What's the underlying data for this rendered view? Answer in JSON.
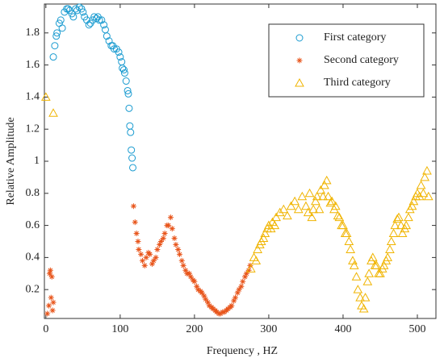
{
  "chart_data": {
    "type": "scatter",
    "x_label": "Frequency , HZ",
    "y_label": "Relative Amplitude",
    "xlim": [
      -2,
      525
    ],
    "ylim": [
      0.02,
      1.98
    ],
    "xticks": [
      0,
      100,
      200,
      300,
      400,
      500
    ],
    "yticks": [
      0.2,
      0.4,
      0.6,
      0.8,
      1,
      1.2,
      1.4,
      1.6,
      1.8
    ],
    "legend": "upper right",
    "series": [
      {
        "name": "First category",
        "color": "#1a9bd0",
        "marker": "circle",
        "x": [
          10,
          12,
          14,
          15,
          18,
          20,
          22,
          25,
          28,
          30,
          32,
          35,
          37,
          40,
          42,
          45,
          48,
          50,
          52,
          55,
          58,
          60,
          63,
          65,
          68,
          70,
          72,
          75,
          78,
          80,
          82,
          85,
          88,
          90,
          92,
          95,
          98,
          100,
          102,
          103,
          105,
          106,
          108,
          110,
          111,
          112,
          113,
          114,
          115,
          116,
          117
        ],
        "values": [
          1.65,
          1.72,
          1.78,
          1.8,
          1.86,
          1.88,
          1.83,
          1.93,
          1.95,
          1.95,
          1.94,
          1.92,
          1.9,
          1.95,
          1.94,
          1.96,
          1.95,
          1.93,
          1.9,
          1.88,
          1.85,
          1.86,
          1.88,
          1.9,
          1.89,
          1.9,
          1.88,
          1.88,
          1.85,
          1.82,
          1.78,
          1.75,
          1.72,
          1.72,
          1.7,
          1.7,
          1.68,
          1.65,
          1.62,
          1.58,
          1.57,
          1.55,
          1.5,
          1.44,
          1.42,
          1.33,
          1.22,
          1.18,
          1.07,
          1.02,
          0.96
        ]
      },
      {
        "name": "Second category",
        "color": "#e8551b",
        "marker": "asterisk",
        "x": [
          2,
          4,
          5,
          6,
          7,
          8,
          9,
          10,
          118,
          120,
          122,
          124,
          125,
          128,
          130,
          133,
          135,
          138,
          140,
          143,
          145,
          148,
          150,
          153,
          155,
          158,
          160,
          163,
          165,
          168,
          170,
          173,
          175,
          178,
          180,
          183,
          185,
          188,
          190,
          193,
          195,
          198,
          200,
          203,
          205,
          208,
          210,
          213,
          215,
          218,
          220,
          223,
          225,
          228,
          230,
          233,
          235,
          238,
          240,
          243,
          245,
          248,
          250,
          253,
          255,
          258,
          260,
          263,
          265,
          268,
          270,
          273,
          275
        ],
        "values": [
          0.05,
          0.1,
          0.3,
          0.32,
          0.15,
          0.28,
          0.07,
          0.12,
          0.72,
          0.62,
          0.55,
          0.5,
          0.45,
          0.42,
          0.38,
          0.35,
          0.4,
          0.43,
          0.42,
          0.36,
          0.38,
          0.4,
          0.45,
          0.48,
          0.5,
          0.52,
          0.55,
          0.6,
          0.6,
          0.65,
          0.58,
          0.52,
          0.48,
          0.45,
          0.42,
          0.38,
          0.35,
          0.32,
          0.3,
          0.3,
          0.28,
          0.26,
          0.25,
          0.22,
          0.2,
          0.19,
          0.18,
          0.16,
          0.14,
          0.12,
          0.1,
          0.09,
          0.08,
          0.07,
          0.06,
          0.05,
          0.05,
          0.06,
          0.06,
          0.07,
          0.08,
          0.09,
          0.1,
          0.13,
          0.15,
          0.18,
          0.2,
          0.22,
          0.25,
          0.28,
          0.3,
          0.32,
          0.35
        ]
      },
      {
        "name": "Third category",
        "color": "#f0b400",
        "marker": "triangle",
        "x": [
          0,
          10,
          276,
          280,
          283,
          285,
          288,
          290,
          293,
          295,
          298,
          300,
          303,
          305,
          308,
          310,
          315,
          320,
          325,
          330,
          335,
          340,
          345,
          350,
          353,
          355,
          358,
          360,
          363,
          365,
          368,
          370,
          373,
          375,
          378,
          380,
          383,
          385,
          388,
          390,
          393,
          395,
          398,
          400,
          403,
          405,
          408,
          410,
          413,
          415,
          418,
          420,
          423,
          425,
          428,
          430,
          433,
          435,
          438,
          440,
          443,
          445,
          448,
          450,
          453,
          455,
          458,
          460,
          463,
          465,
          468,
          470,
          473,
          475,
          478,
          480,
          483,
          485,
          488,
          490,
          493,
          495,
          498,
          500,
          503,
          505,
          508,
          510,
          513,
          515
        ],
        "values": [
          1.4,
          1.3,
          0.33,
          0.4,
          0.38,
          0.45,
          0.48,
          0.5,
          0.52,
          0.55,
          0.58,
          0.6,
          0.58,
          0.62,
          0.6,
          0.65,
          0.68,
          0.7,
          0.66,
          0.72,
          0.75,
          0.7,
          0.78,
          0.72,
          0.68,
          0.8,
          0.65,
          0.7,
          0.75,
          0.78,
          0.7,
          0.82,
          0.78,
          0.85,
          0.88,
          0.78,
          0.74,
          0.75,
          0.7,
          0.72,
          0.66,
          0.65,
          0.6,
          0.6,
          0.55,
          0.55,
          0.5,
          0.45,
          0.38,
          0.35,
          0.28,
          0.2,
          0.15,
          0.1,
          0.08,
          0.15,
          0.25,
          0.3,
          0.38,
          0.4,
          0.35,
          0.35,
          0.3,
          0.3,
          0.33,
          0.35,
          0.38,
          0.4,
          0.45,
          0.5,
          0.55,
          0.6,
          0.64,
          0.65,
          0.6,
          0.55,
          0.58,
          0.6,
          0.65,
          0.7,
          0.72,
          0.75,
          0.78,
          0.8,
          0.78,
          0.85,
          0.8,
          0.9,
          0.94,
          0.78
        ]
      }
    ]
  }
}
